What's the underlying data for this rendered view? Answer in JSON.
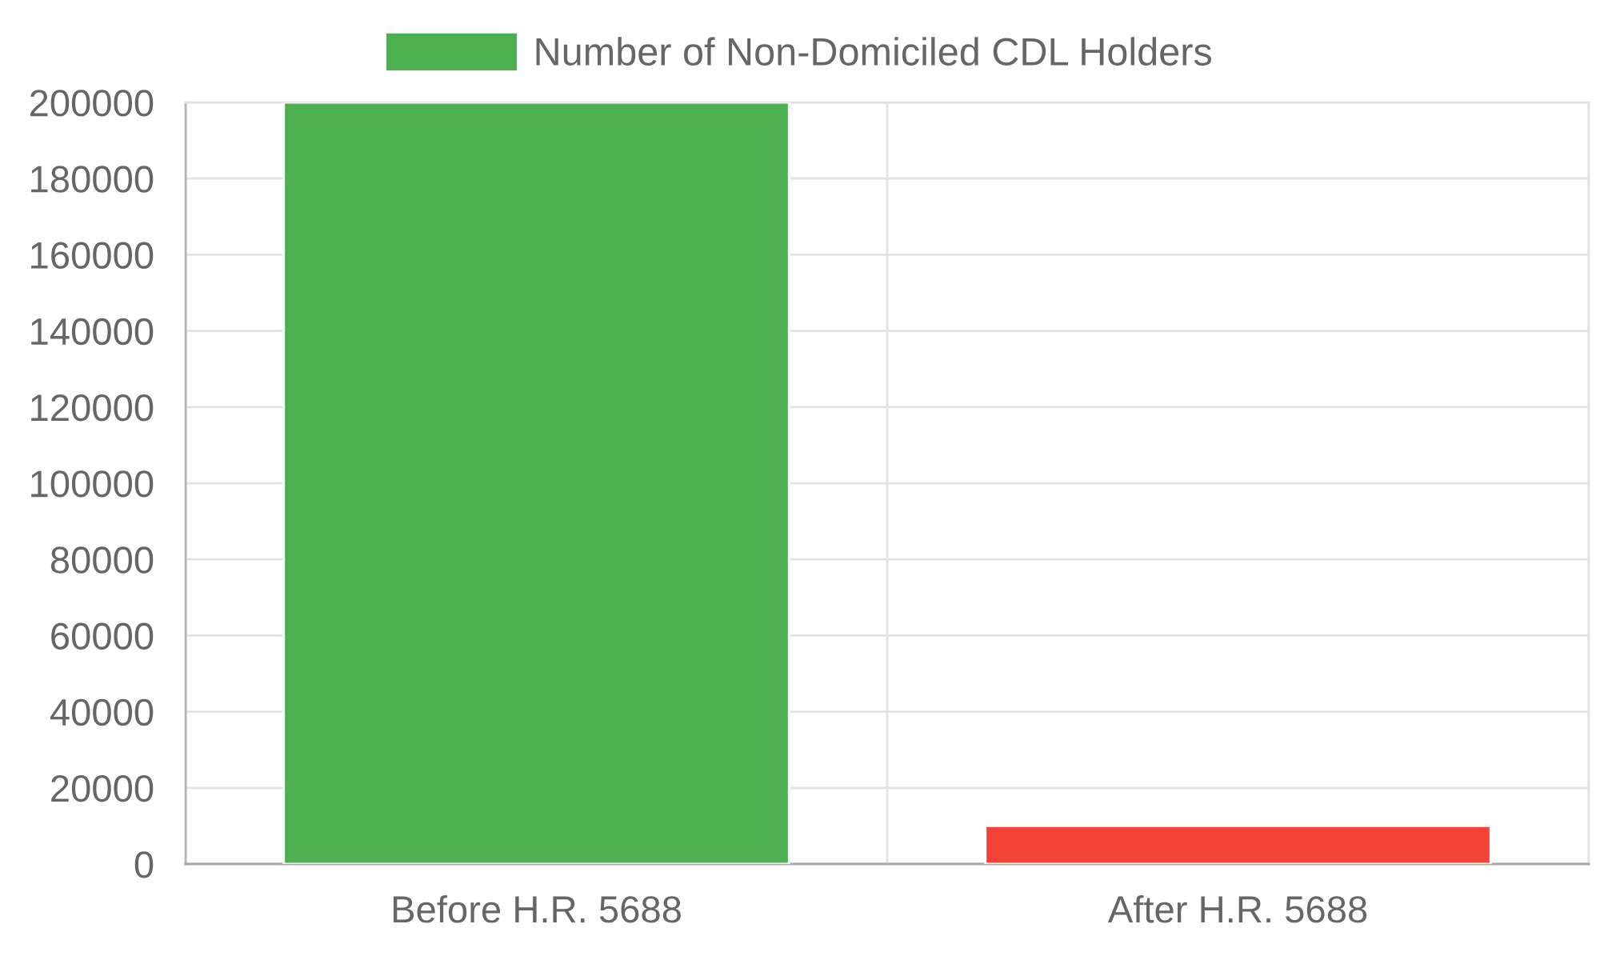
{
  "chart_data": {
    "type": "bar",
    "categories": [
      "Before H.R. 5688",
      "After H.R. 5688"
    ],
    "series": [
      {
        "name": "Number of Non-Domiciled CDL Holders",
        "colors": [
          "#4caf50",
          "#f44336"
        ],
        "values": [
          200000,
          10000
        ]
      }
    ],
    "ylim": [
      0,
      200000
    ],
    "yticks": [
      0,
      20000,
      40000,
      60000,
      80000,
      100000,
      120000,
      140000,
      160000,
      180000,
      200000
    ],
    "grid": true,
    "legend": "top"
  }
}
